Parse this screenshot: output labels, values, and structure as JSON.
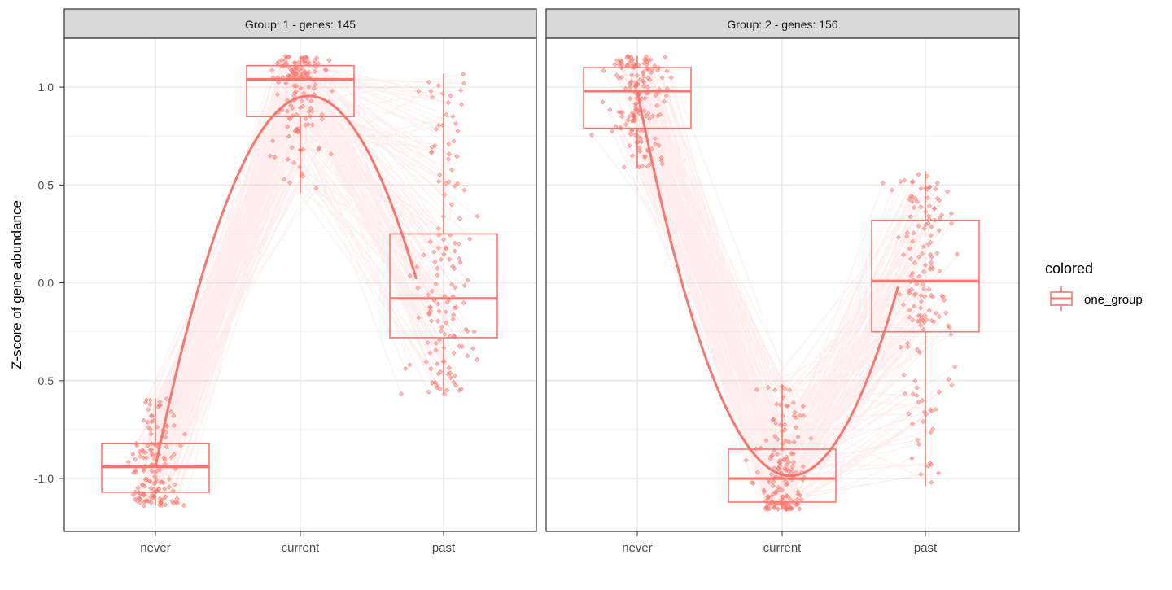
{
  "chart_data": {
    "type": "boxplot",
    "ylabel": "Z-score of gene abundance",
    "categories": [
      "never",
      "current",
      "past"
    ],
    "ylim": [
      -1.27,
      1.25
    ],
    "yticks": [
      1.0,
      0.5,
      0.0,
      -0.5,
      -1.0
    ],
    "ytick_labels": [
      "1.0",
      "0.5",
      "0.0",
      "-0.5",
      "-1.0"
    ],
    "grid": true,
    "legend": {
      "title": "colored",
      "placement": "right",
      "entries": [
        {
          "name": "one_group",
          "color": "#F8766D"
        }
      ]
    },
    "series_color": "#F8766D",
    "panels": [
      {
        "title": "Group:  1 - genes: 145",
        "genes": 145,
        "boxes": [
          {
            "category": "never",
            "q1": -1.07,
            "median": -0.94,
            "q3": -0.82,
            "whisker_low": -1.14,
            "whisker_high": -0.59
          },
          {
            "category": "current",
            "q1": 0.85,
            "median": 1.04,
            "q3": 1.11,
            "whisker_low": 0.46,
            "whisker_high": 1.16
          },
          {
            "category": "past",
            "q1": -0.28,
            "median": -0.08,
            "q3": 0.25,
            "whisker_low": -0.57,
            "whisker_high": 1.07
          }
        ],
        "trend": [
          [
            1.0,
            -0.94
          ],
          [
            2.0,
            0.95
          ],
          [
            2.8,
            0.02
          ]
        ]
      },
      {
        "title": "Group:  2 - genes: 156",
        "genes": 156,
        "boxes": [
          {
            "category": "never",
            "q1": 0.79,
            "median": 0.98,
            "q3": 1.1,
            "whisker_low": 0.59,
            "whisker_high": 1.16
          },
          {
            "category": "current",
            "q1": -1.12,
            "median": -1.0,
            "q3": -0.85,
            "whisker_low": -1.16,
            "whisker_high": -0.52
          },
          {
            "category": "past",
            "q1": -0.25,
            "median": 0.01,
            "q3": 0.32,
            "whisker_low": -1.04,
            "whisker_high": 0.57
          }
        ],
        "trend": [
          [
            1.0,
            0.98
          ],
          [
            2.0,
            -0.98
          ],
          [
            2.8,
            -0.02
          ]
        ]
      }
    ]
  }
}
